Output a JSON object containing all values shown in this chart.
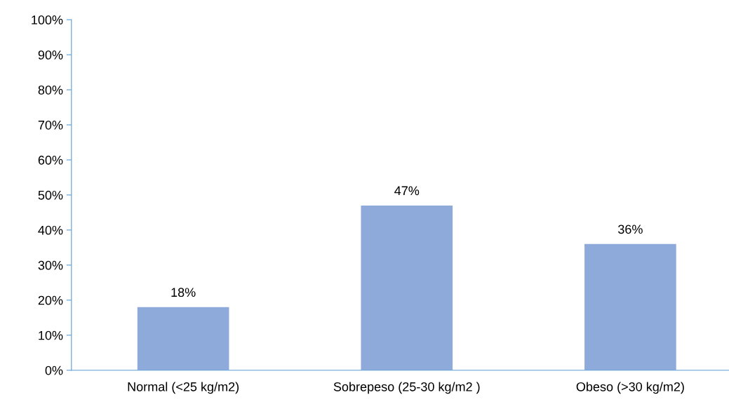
{
  "chart_data": {
    "type": "bar",
    "categories": [
      "Normal (<25 kg/m2)",
      "Sobrepeso (25-30 kg/m2 )",
      "Obeso (>30 kg/m2)"
    ],
    "values": [
      18,
      47,
      36
    ],
    "value_labels": [
      "18%",
      "47%",
      "36%"
    ],
    "color": "#8eaadb",
    "ylim": [
      0,
      100
    ],
    "yticks": [
      {
        "value": 0,
        "label": "0%"
      },
      {
        "value": 10,
        "label": "10%"
      },
      {
        "value": 20,
        "label": "20%"
      },
      {
        "value": 30,
        "label": "30%"
      },
      {
        "value": 40,
        "label": "40%"
      },
      {
        "value": 50,
        "label": "50%"
      },
      {
        "value": 60,
        "label": "60%"
      },
      {
        "value": 70,
        "label": "70%"
      },
      {
        "value": 80,
        "label": "80%"
      },
      {
        "value": 90,
        "label": "90%"
      },
      {
        "value": 100,
        "label": "100%"
      }
    ],
    "grid": false
  }
}
